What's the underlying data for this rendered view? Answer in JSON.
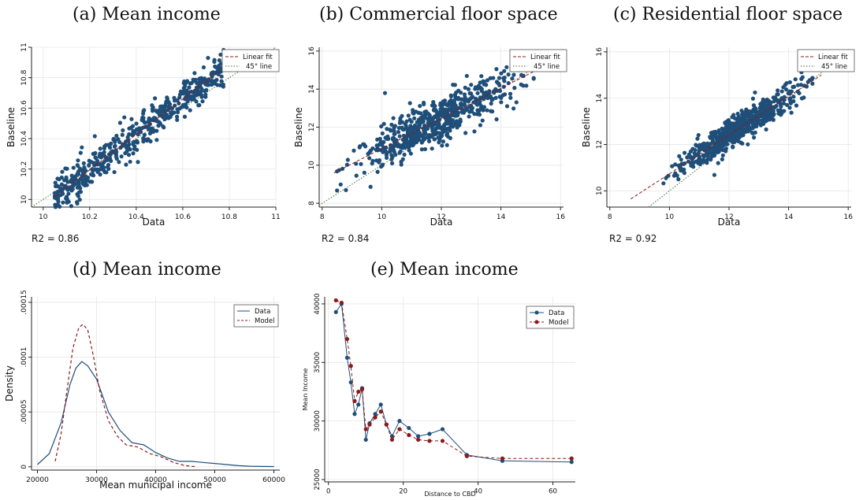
{
  "colors": {
    "data": "#1f4e79",
    "model": "#8b1a1a",
    "grid": "#e6e6e6",
    "fit": "#8b1a1a",
    "diag": "#3d6b2f"
  },
  "titles": {
    "a": "(a) Mean income",
    "b": "(b) Commercial floor space",
    "c": "(c) Residential floor space",
    "d": "(d) Mean income",
    "e": "(e) Mean income"
  },
  "r2": {
    "a": "R2 = 0.86",
    "b": "R2 = 0.84",
    "c": "R2 = 0.92"
  },
  "chart_data": [
    {
      "id": "a",
      "type": "scatter",
      "xlabel": "Data",
      "ylabel": "Baseline",
      "xlim": [
        9.95,
        11.0
      ],
      "ylim": [
        9.95,
        11.0
      ],
      "xticks": [
        10,
        10.2,
        10.4,
        10.6,
        10.8,
        11
      ],
      "yticks": [
        10,
        10.2,
        10.4,
        10.6,
        10.8,
        11
      ],
      "legend": [
        "Linear fit",
        "45° line"
      ],
      "legend_position": "top-right",
      "fit": [
        [
          10.05,
          10.02
        ],
        [
          10.78,
          10.87
        ]
      ],
      "cloud": {
        "xmin": 10.05,
        "xmax": 10.78,
        "slope": 1.16,
        "intercept": -1.64,
        "spread": 0.06,
        "n": 520
      },
      "r2": "R2 = 0.86"
    },
    {
      "id": "b",
      "type": "scatter",
      "xlabel": "Data",
      "ylabel": "Baseline",
      "xlim": [
        7.9,
        16.1
      ],
      "ylim": [
        7.8,
        16.2
      ],
      "xticks": [
        8,
        10,
        12,
        14,
        16
      ],
      "yticks": [
        8,
        10,
        12,
        14,
        16
      ],
      "legend": [
        "Linear fit",
        "45° line"
      ],
      "legend_position": "top-right",
      "fit": [
        [
          8.4,
          9.6
        ],
        [
          15.2,
          15.0
        ]
      ],
      "cloud": {
        "xmin": 8.5,
        "xmax": 15.1,
        "slope": 0.79,
        "intercept": 2.95,
        "spread": 0.55,
        "n": 620
      },
      "r2": "R2 = 0.84"
    },
    {
      "id": "c",
      "type": "scatter",
      "xlabel": "Data",
      "ylabel": "Baseline",
      "xlim": [
        7.9,
        16.1
      ],
      "ylim": [
        9.3,
        16.2
      ],
      "xticks": [
        8,
        10,
        12,
        14,
        16
      ],
      "yticks": [
        10,
        12,
        14,
        16
      ],
      "legend": [
        "Linear fit",
        "45° line"
      ],
      "legend_position": "top-right",
      "fit": [
        [
          8.7,
          9.65
        ],
        [
          15.1,
          15.0
        ]
      ],
      "cloud": {
        "xmin": 9.8,
        "xmax": 14.8,
        "slope": 0.84,
        "intercept": 2.35,
        "spread": 0.3,
        "n": 650
      },
      "r2": "R2 = 0.92"
    },
    {
      "id": "d",
      "type": "line",
      "xlabel": "Mean municipal income",
      "ylabel": "Density",
      "xlim": [
        19000,
        61000
      ],
      "ylim": [
        -3e-06,
        0.000155
      ],
      "xticks": [
        20000,
        30000,
        40000,
        50000,
        60000
      ],
      "yticks": [
        0,
        5e-05,
        0.0001,
        0.00015
      ],
      "ytick_labels": [
        "0",
        ".00005",
        ".0001",
        ".00015"
      ],
      "legend_position": "top-right",
      "series": [
        {
          "name": "Data",
          "x": [
            20000,
            22000,
            24000,
            25500,
            26500,
            27500,
            28500,
            30000,
            32000,
            34000,
            36000,
            38000,
            40000,
            42000,
            44000,
            46000,
            48000,
            50000,
            52000,
            54000,
            56000,
            58000,
            60000
          ],
          "y": [
            2e-06,
            1.2e-05,
            4e-05,
            7.5e-05,
            9e-05,
            9.6e-05,
            9.2e-05,
            8e-05,
            5e-05,
            3.3e-05,
            2.2e-05,
            2e-05,
            1.3e-05,
            8e-06,
            5e-06,
            5e-06,
            4e-06,
            3e-06,
            2e-06,
            1e-06,
            5e-07,
            3e-07,
            2e-07
          ]
        },
        {
          "name": "Model",
          "x": [
            23000,
            24000,
            25000,
            26000,
            27000,
            27700,
            28500,
            29500,
            30500,
            32000,
            33500,
            35000,
            37000,
            39000,
            41000,
            43000,
            45000,
            47000
          ],
          "y": [
            5e-06,
            3e-05,
            7e-05,
            0.000108,
            0.000127,
            0.00013,
            0.000125,
            0.0001,
            7e-05,
            4.2e-05,
            2.8e-05,
            2e-05,
            1.8e-05,
            1.2e-05,
            9e-06,
            4e-06,
            1e-06,
            0.0
          ]
        }
      ]
    },
    {
      "id": "e",
      "type": "line",
      "xlabel": "Distance to CBD",
      "ylabel": "Mean Income",
      "xlim": [
        -1,
        66
      ],
      "ylim": [
        24800,
        40600
      ],
      "xticks": [
        0,
        20,
        40,
        60
      ],
      "yticks": [
        25000,
        30000,
        35000,
        40000
      ],
      "legend_position": "top-right",
      "series": [
        {
          "name": "Data",
          "x": [
            2,
            3.5,
            5,
            6,
            7,
            8,
            9,
            10,
            11,
            12.5,
            14,
            15.5,
            17,
            19,
            21.5,
            24,
            27,
            30.5,
            37,
            46.5,
            65
          ],
          "y": [
            39300,
            40000,
            35400,
            33300,
            30600,
            31400,
            32800,
            28400,
            29800,
            30600,
            31400,
            29700,
            28700,
            30000,
            29400,
            28700,
            28900,
            29300,
            27100,
            26600,
            26500
          ]
        },
        {
          "name": "Model",
          "x": [
            2,
            3.5,
            5,
            6,
            7,
            8,
            9,
            10,
            11,
            12.5,
            14,
            15.5,
            17,
            19,
            21.5,
            24,
            27,
            30.5,
            37,
            46.5,
            65
          ],
          "y": [
            40300,
            40100,
            37000,
            34700,
            31700,
            32500,
            32700,
            29300,
            29700,
            30300,
            30800,
            29700,
            28400,
            29300,
            28800,
            28400,
            28300,
            28300,
            27000,
            26800,
            26800
          ]
        }
      ]
    }
  ]
}
